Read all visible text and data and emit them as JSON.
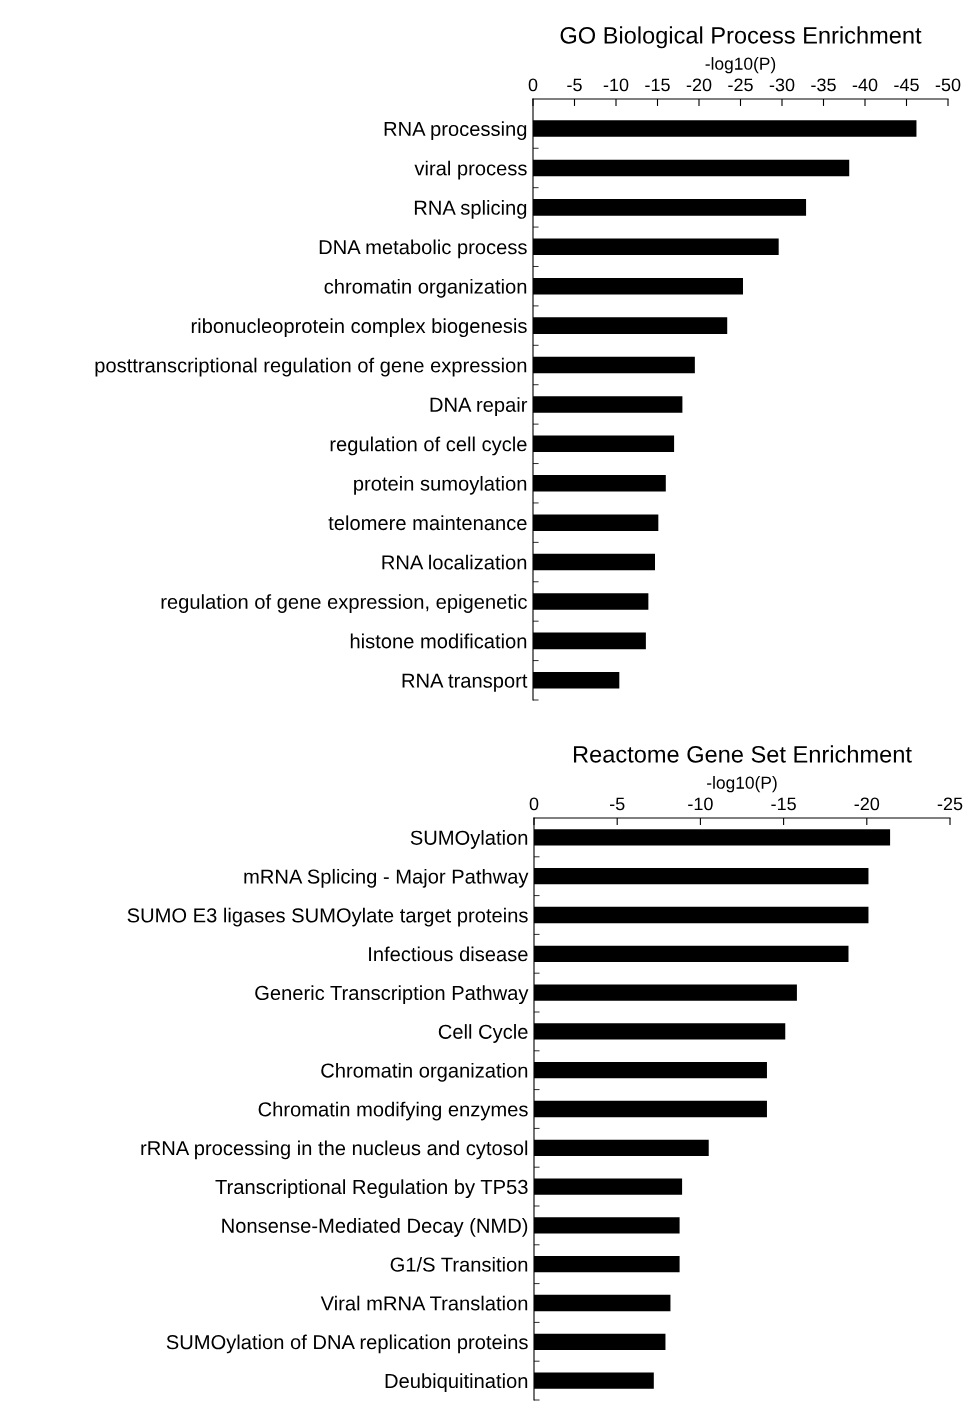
{
  "chart_data": [
    {
      "type": "bar",
      "orientation": "horizontal",
      "title": "GO Biological Process Enrichment",
      "xlabel": "-log10(P)",
      "color": "#000000",
      "categories": [
        "RNA processing",
        "viral process",
        "RNA splicing",
        "DNA metabolic process",
        "chromatin organization",
        "ribonucleoprotein complex biogenesis",
        "posttranscriptional regulation of gene expression",
        "DNA repair",
        "regulation of cell cycle",
        "protein sumoylation",
        "telomere maintenance",
        "RNA localization",
        "regulation of gene expression, epigenetic",
        "histone modification",
        "RNA transport"
      ],
      "values": [
        -46.2,
        -38.1,
        -32.9,
        -29.6,
        -25.3,
        -23.4,
        -19.5,
        -18.0,
        -17.0,
        -16.0,
        -15.1,
        -14.7,
        -13.9,
        -13.6,
        -10.4
      ],
      "xlim": [
        0,
        -50
      ],
      "xticks": [
        0,
        -5,
        -10,
        -15,
        -20,
        -25,
        -30,
        -35,
        -40,
        -45,
        -50
      ]
    },
    {
      "type": "bar",
      "orientation": "horizontal",
      "title": "Reactome Gene Set Enrichment",
      "xlabel": "-log10(P)",
      "color": "#000000",
      "categories": [
        "SUMOylation",
        "mRNA Splicing - Major Pathway",
        "SUMO E3 ligases SUMOylate target proteins",
        "Infectious disease",
        "Generic Transcription Pathway",
        "Cell Cycle",
        "Chromatin organization",
        "Chromatin modifying enzymes",
        "rRNA processing in the nucleus and cytosol",
        "Transcriptional Regulation by TP53",
        "Nonsense-Mediated Decay (NMD)",
        "G1/S Transition",
        "Viral mRNA Translation",
        "SUMOylation of DNA replication proteins",
        "Deubiquitination"
      ],
      "values": [
        -21.4,
        -20.1,
        -20.1,
        -18.9,
        -15.8,
        -15.1,
        -14.0,
        -14.0,
        -10.5,
        -8.9,
        -8.75,
        -8.75,
        -8.2,
        -7.9,
        -7.2
      ],
      "xlim": [
        0,
        -25
      ],
      "xticks": [
        0,
        -5,
        -10,
        -15,
        -20,
        -25
      ]
    }
  ]
}
